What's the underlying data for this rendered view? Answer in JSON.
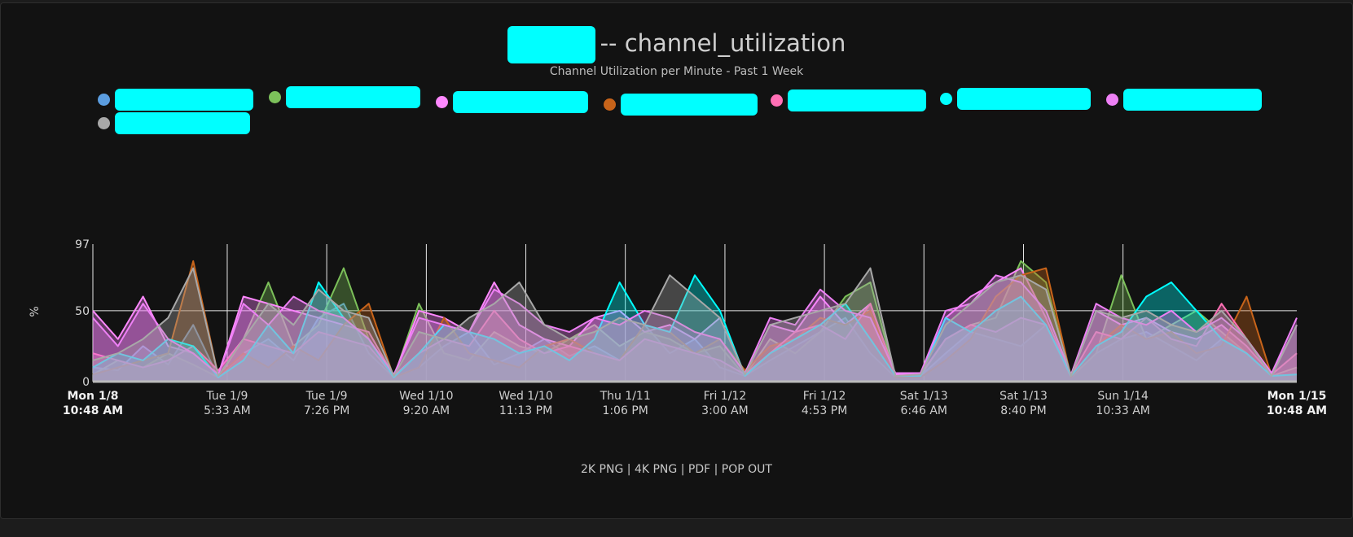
{
  "title": {
    "suffix": "-- channel_utilization",
    "redacted_prefix": true
  },
  "subtitle": "Channel Utilization per Minute - Past 1 Week",
  "legend": [
    {
      "color": "#5b9de0"
    },
    {
      "color": "#7cc05a"
    },
    {
      "color": "#ff88ff"
    },
    {
      "color": "#c8641a"
    },
    {
      "color": "#ff6fb5"
    },
    {
      "color": "#00ffff"
    },
    {
      "color": "#ee80f5"
    },
    {
      "color": "#a8a8a8"
    }
  ],
  "footer": {
    "links": [
      "2K PNG",
      "4K PNG",
      "PDF",
      "POP OUT"
    ],
    "separator": " | "
  },
  "chart_data": {
    "type": "area",
    "title": "-- channel_utilization",
    "subtitle": "Channel Utilization per Minute - Past 1 Week",
    "ylabel": "%",
    "ylim": [
      0,
      97
    ],
    "yticks": [
      "0",
      "50",
      "97"
    ],
    "x_range": [
      "Mon 1/8 10:48 AM",
      "Mon 1/15 10:48 AM"
    ],
    "x_interval_hours": 3.5,
    "xticks": [
      {
        "hours": 0,
        "line1": "Mon 1/8",
        "line2": "10:48 AM",
        "bold": true
      },
      {
        "hours": 18.75,
        "line1": "Tue 1/9",
        "line2": "5:33 AM"
      },
      {
        "hours": 32.633,
        "line1": "Tue 1/9",
        "line2": "7:26 PM"
      },
      {
        "hours": 46.533,
        "line1": "Wed 1/10",
        "line2": "9:20 AM"
      },
      {
        "hours": 60.417,
        "line1": "Wed 1/10",
        "line2": "11:13 PM"
      },
      {
        "hours": 74.3,
        "line1": "Thu 1/11",
        "line2": "1:06 PM"
      },
      {
        "hours": 88.2,
        "line1": "Fri 1/12",
        "line2": "3:00 AM"
      },
      {
        "hours": 102.083,
        "line1": "Fri 1/12",
        "line2": "4:53 PM"
      },
      {
        "hours": 115.967,
        "line1": "Sat 1/13",
        "line2": "6:46 AM"
      },
      {
        "hours": 129.867,
        "line1": "Sat 1/13",
        "line2": "8:40 PM"
      },
      {
        "hours": 143.75,
        "line1": "Sun 1/14",
        "line2": "10:33 AM"
      },
      {
        "hours": 168,
        "line1": "Mon 1/15",
        "line2": "10:48 AM",
        "bold": true
      }
    ],
    "grid": "vertical lines at x ticks, horizontal line at 50",
    "series": [
      {
        "color": "#5b9de0",
        "values": [
          10,
          8,
          25,
          12,
          40,
          3,
          20,
          30,
          15,
          45,
          55,
          20,
          3,
          10,
          25,
          35,
          12,
          20,
          30,
          18,
          25,
          15,
          40,
          20,
          30,
          10,
          4,
          15,
          25,
          35,
          45,
          20,
          3,
          4,
          20,
          35,
          30,
          25,
          40,
          3,
          20,
          30,
          35,
          25,
          15,
          30,
          20,
          4,
          5
        ]
      },
      {
        "color": "#7cc05a",
        "values": [
          5,
          15,
          10,
          20,
          12,
          3,
          30,
          70,
          25,
          40,
          80,
          30,
          3,
          55,
          20,
          15,
          35,
          25,
          20,
          30,
          40,
          25,
          35,
          30,
          20,
          25,
          4,
          30,
          20,
          35,
          60,
          70,
          3,
          4,
          30,
          40,
          45,
          85,
          70,
          3,
          20,
          75,
          30,
          40,
          50,
          35,
          20,
          4,
          10
        ]
      },
      {
        "color": "#ff88ff",
        "values": [
          50,
          30,
          60,
          25,
          20,
          5,
          60,
          55,
          50,
          45,
          40,
          35,
          4,
          50,
          45,
          35,
          70,
          40,
          30,
          25,
          45,
          50,
          35,
          40,
          30,
          45,
          5,
          40,
          35,
          60,
          40,
          55,
          5,
          6,
          45,
          60,
          70,
          80,
          45,
          4,
          50,
          40,
          45,
          35,
          30,
          40,
          25,
          5,
          40
        ]
      },
      {
        "color": "#c8641a",
        "values": [
          5,
          10,
          15,
          20,
          85,
          4,
          20,
          10,
          25,
          15,
          40,
          55,
          3,
          10,
          45,
          20,
          15,
          10,
          25,
          30,
          20,
          15,
          40,
          35,
          20,
          30,
          8,
          25,
          30,
          45,
          40,
          50,
          3,
          3,
          15,
          30,
          60,
          75,
          80,
          3,
          25,
          40,
          30,
          35,
          20,
          25,
          60,
          4,
          5
        ]
      },
      {
        "color": "#ff6fb5",
        "values": [
          20,
          15,
          10,
          15,
          25,
          8,
          30,
          25,
          20,
          35,
          30,
          25,
          4,
          20,
          30,
          25,
          50,
          30,
          20,
          25,
          20,
          15,
          30,
          25,
          20,
          15,
          5,
          20,
          35,
          40,
          30,
          55,
          4,
          5,
          30,
          40,
          35,
          45,
          40,
          4,
          35,
          30,
          45,
          30,
          25,
          55,
          30,
          5,
          20
        ]
      },
      {
        "color": "#00ffff",
        "values": [
          10,
          20,
          15,
          30,
          25,
          3,
          15,
          40,
          20,
          70,
          45,
          30,
          3,
          20,
          40,
          35,
          30,
          20,
          25,
          15,
          30,
          70,
          40,
          35,
          75,
          50,
          4,
          20,
          30,
          40,
          55,
          30,
          4,
          4,
          45,
          35,
          50,
          60,
          40,
          4,
          25,
          35,
          60,
          70,
          50,
          30,
          20,
          4,
          5
        ]
      },
      {
        "color": "#ee80f5",
        "values": [
          45,
          25,
          55,
          30,
          20,
          5,
          55,
          40,
          60,
          50,
          45,
          30,
          5,
          45,
          40,
          35,
          65,
          55,
          40,
          35,
          45,
          40,
          50,
          45,
          35,
          30,
          6,
          45,
          40,
          65,
          50,
          45,
          6,
          6,
          50,
          55,
          75,
          70,
          50,
          5,
          55,
          45,
          40,
          50,
          35,
          45,
          30,
          6,
          45
        ]
      },
      {
        "color": "#a8a8a8",
        "values": [
          15,
          20,
          30,
          45,
          80,
          4,
          30,
          55,
          40,
          65,
          50,
          45,
          4,
          35,
          30,
          45,
          55,
          70,
          40,
          30,
          35,
          45,
          40,
          75,
          60,
          45,
          5,
          40,
          45,
          50,
          55,
          80,
          4,
          5,
          40,
          55,
          70,
          75,
          65,
          4,
          50,
          45,
          50,
          40,
          35,
          50,
          30,
          4,
          40
        ]
      }
    ]
  }
}
